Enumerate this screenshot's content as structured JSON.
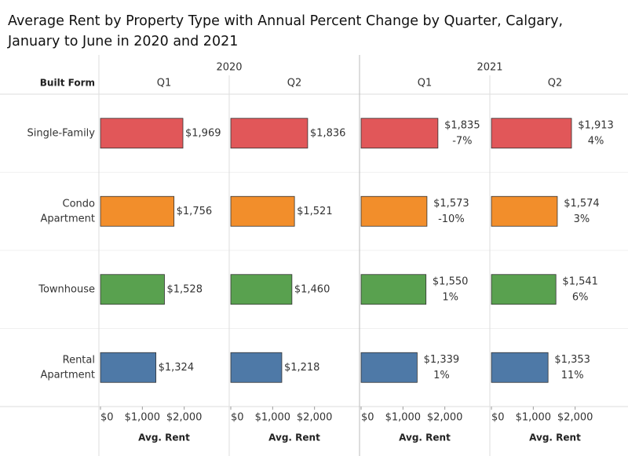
{
  "chart_data": {
    "type": "bar",
    "orientation": "horizontal",
    "title": [
      "Average Rent by Property Type with Annual Percent Change by Quarter, Calgary,",
      "January to June in 2020 and 2021"
    ],
    "row_header": "Built Form",
    "categories": [
      [
        "Single-Family"
      ],
      [
        "Condo",
        "Apartment"
      ],
      [
        "Townhouse"
      ],
      [
        "Rental",
        "Apartment"
      ]
    ],
    "colors": [
      "#e15759",
      "#f28e2b",
      "#59a14f",
      "#4e79a7"
    ],
    "xlim": [
      0,
      3000
    ],
    "xticks": [
      {
        "value": 0,
        "label": "$0"
      },
      {
        "value": 1000,
        "label": "$1,000"
      },
      {
        "value": 2000,
        "label": "$2,000"
      }
    ],
    "x_label": "Avg. Rent",
    "columns": [
      {
        "year": "2020",
        "quarters": [
          {
            "name": "Q1",
            "values": [
              1969,
              1756,
              1528,
              1324
            ],
            "value_labels": [
              "$1,969",
              "$1,756",
              "$1,528",
              "$1,324"
            ]
          },
          {
            "name": "Q2",
            "values": [
              1836,
              1521,
              1460,
              1218
            ],
            "value_labels": [
              "$1,836",
              "$1,521",
              "$1,460",
              "$1,218"
            ]
          }
        ]
      },
      {
        "year": "2021",
        "quarters": [
          {
            "name": "Q1",
            "values": [
              1835,
              1573,
              1550,
              1339
            ],
            "value_labels": [
              "$1,835",
              "$1,573",
              "$1,550",
              "$1,339"
            ],
            "pct_change": [
              -7,
              -10,
              1,
              1
            ],
            "pct_change_labels": [
              "-7%",
              "-10%",
              "1%",
              "1%"
            ]
          },
          {
            "name": "Q2",
            "values": [
              1913,
              1574,
              1541,
              1353
            ],
            "value_labels": [
              "$1,913",
              "$1,574",
              "$1,541",
              "$1,353"
            ],
            "pct_change": [
              4,
              3,
              6,
              11
            ],
            "pct_change_labels": [
              "4%",
              "3%",
              "6%",
              "11%"
            ]
          }
        ]
      }
    ]
  }
}
